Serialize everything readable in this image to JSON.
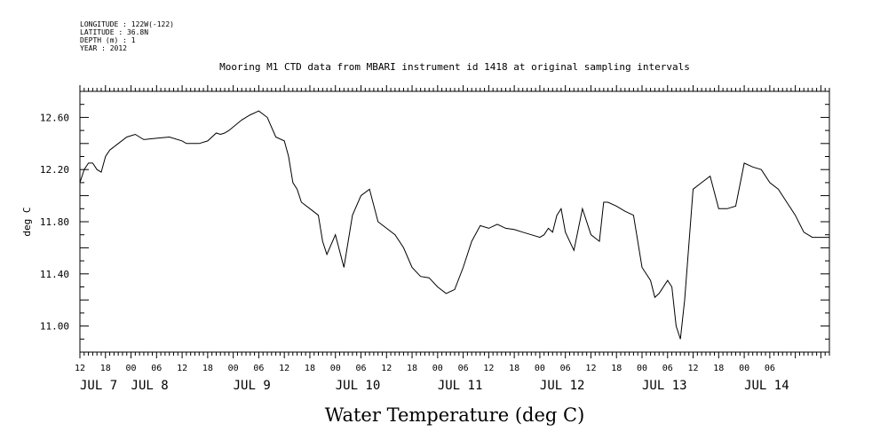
{
  "meta_lines": [
    "LONGITUDE : 122W(-122)",
    "LATITUDE : 36.8N",
    "DEPTH (m) : 1",
    "YEAR : 2012"
  ],
  "chart_data": {
    "type": "line",
    "title": "Mooring M1 CTD data from MBARI instrument id 1418 at original sampling intervals",
    "xlabel": "Water Temperature (deg C)",
    "ylabel": "deg C",
    "ylim": [
      10.8,
      12.8
    ],
    "yticks": [
      11.0,
      11.4,
      11.8,
      12.2,
      12.6
    ],
    "ytick_labels": [
      "11.00",
      "11.40",
      "11.80",
      "12.20",
      "12.60"
    ],
    "xlim": [
      "2012-07-07T12:00",
      "2012-07-14T20:00"
    ],
    "x_hour_labels": [
      "12",
      "18",
      "00",
      "06",
      "12",
      "18",
      "00",
      "06",
      "12",
      "18",
      "00",
      "06",
      "12",
      "18",
      "00",
      "06",
      "12",
      "18",
      "00",
      "06",
      "12",
      "18",
      "00",
      "06",
      "12",
      "18",
      "00",
      "06"
    ],
    "x_day_labels": [
      "JUL 7",
      "JUL 8",
      "JUL 9",
      "JUL 10",
      "JUL 11",
      "JUL 12",
      "JUL 13",
      "JUL 14"
    ],
    "grid": false,
    "series": [
      {
        "x": [
          "2012-07-07T12:00",
          "2012-07-07T13:00",
          "2012-07-07T14:00",
          "2012-07-07T15:00",
          "2012-07-07T16:00",
          "2012-07-07T17:00",
          "2012-07-07T18:00",
          "2012-07-07T19:00",
          "2012-07-07T21:00",
          "2012-07-07T23:00",
          "2012-07-08T01:00",
          "2012-07-08T03:00",
          "2012-07-08T06:00",
          "2012-07-08T09:00",
          "2012-07-08T12:00",
          "2012-07-08T13:00",
          "2012-07-08T16:00",
          "2012-07-08T18:00",
          "2012-07-08T20:00",
          "2012-07-08T21:00",
          "2012-07-08T22:00",
          "2012-07-08T23:00",
          "2012-07-09T02:00",
          "2012-07-09T04:00",
          "2012-07-09T06:00",
          "2012-07-09T08:00",
          "2012-07-09T10:00",
          "2012-07-09T12:00",
          "2012-07-09T13:00",
          "2012-07-09T14:00",
          "2012-07-09T15:00",
          "2012-07-09T16:00",
          "2012-07-09T18:00",
          "2012-07-09T20:00",
          "2012-07-09T21:00",
          "2012-07-09T22:00",
          "2012-07-10T00:00",
          "2012-07-10T02:00",
          "2012-07-10T04:00",
          "2012-07-10T06:00",
          "2012-07-10T08:00",
          "2012-07-10T10:00",
          "2012-07-10T12:00",
          "2012-07-10T14:00",
          "2012-07-10T16:00",
          "2012-07-10T18:00",
          "2012-07-10T20:00",
          "2012-07-10T22:00",
          "2012-07-11T00:00",
          "2012-07-11T02:00",
          "2012-07-11T04:00",
          "2012-07-11T06:00",
          "2012-07-11T08:00",
          "2012-07-11T10:00",
          "2012-07-11T12:00",
          "2012-07-11T14:00",
          "2012-07-11T16:00",
          "2012-07-11T18:00",
          "2012-07-11T20:00",
          "2012-07-11T22:00",
          "2012-07-12T00:00",
          "2012-07-12T01:00",
          "2012-07-12T02:00",
          "2012-07-12T03:00",
          "2012-07-12T04:00",
          "2012-07-12T05:00",
          "2012-07-12T06:00",
          "2012-07-12T08:00",
          "2012-07-12T10:00",
          "2012-07-12T12:00",
          "2012-07-12T14:00",
          "2012-07-12T15:00",
          "2012-07-12T16:00",
          "2012-07-12T18:00",
          "2012-07-12T20:00",
          "2012-07-12T22:00",
          "2012-07-13T00:00",
          "2012-07-13T02:00",
          "2012-07-13T03:00",
          "2012-07-13T04:00",
          "2012-07-13T06:00",
          "2012-07-13T07:00",
          "2012-07-13T08:00",
          "2012-07-13T09:00",
          "2012-07-13T10:00",
          "2012-07-13T12:00",
          "2012-07-13T14:00",
          "2012-07-13T16:00",
          "2012-07-13T18:00",
          "2012-07-13T20:00",
          "2012-07-13T22:00",
          "2012-07-14T00:00",
          "2012-07-14T02:00",
          "2012-07-14T04:00",
          "2012-07-14T06:00",
          "2012-07-14T08:00",
          "2012-07-14T10:00",
          "2012-07-14T12:00",
          "2012-07-14T14:00",
          "2012-07-14T16:00",
          "2012-07-14T18:00",
          "2012-07-14T20:00"
        ],
        "y": [
          12.1,
          12.2,
          12.25,
          12.25,
          12.2,
          12.18,
          12.3,
          12.35,
          12.4,
          12.45,
          12.47,
          12.43,
          12.44,
          12.45,
          12.42,
          12.4,
          12.4,
          12.42,
          12.48,
          12.47,
          12.48,
          12.5,
          12.58,
          12.62,
          12.65,
          12.6,
          12.45,
          12.42,
          12.3,
          12.1,
          12.05,
          11.95,
          11.9,
          11.85,
          11.65,
          11.55,
          11.7,
          11.45,
          11.85,
          12.0,
          12.05,
          11.8,
          11.75,
          11.7,
          11.6,
          11.45,
          11.38,
          11.37,
          11.3,
          11.25,
          11.28,
          11.45,
          11.65,
          11.77,
          11.75,
          11.78,
          11.75,
          11.74,
          11.72,
          11.7,
          11.68,
          11.7,
          11.75,
          11.72,
          11.85,
          11.9,
          11.72,
          11.58,
          11.9,
          11.7,
          11.65,
          11.95,
          11.95,
          11.92,
          11.88,
          11.85,
          11.45,
          11.35,
          11.22,
          11.25,
          11.35,
          11.3,
          11.0,
          10.9,
          11.2,
          12.05,
          12.1,
          12.15,
          11.9,
          11.9,
          11.92,
          12.25,
          12.22,
          12.2,
          12.1,
          12.05,
          11.95,
          11.85,
          11.72,
          11.68,
          11.68,
          11.68
        ]
      }
    ]
  }
}
